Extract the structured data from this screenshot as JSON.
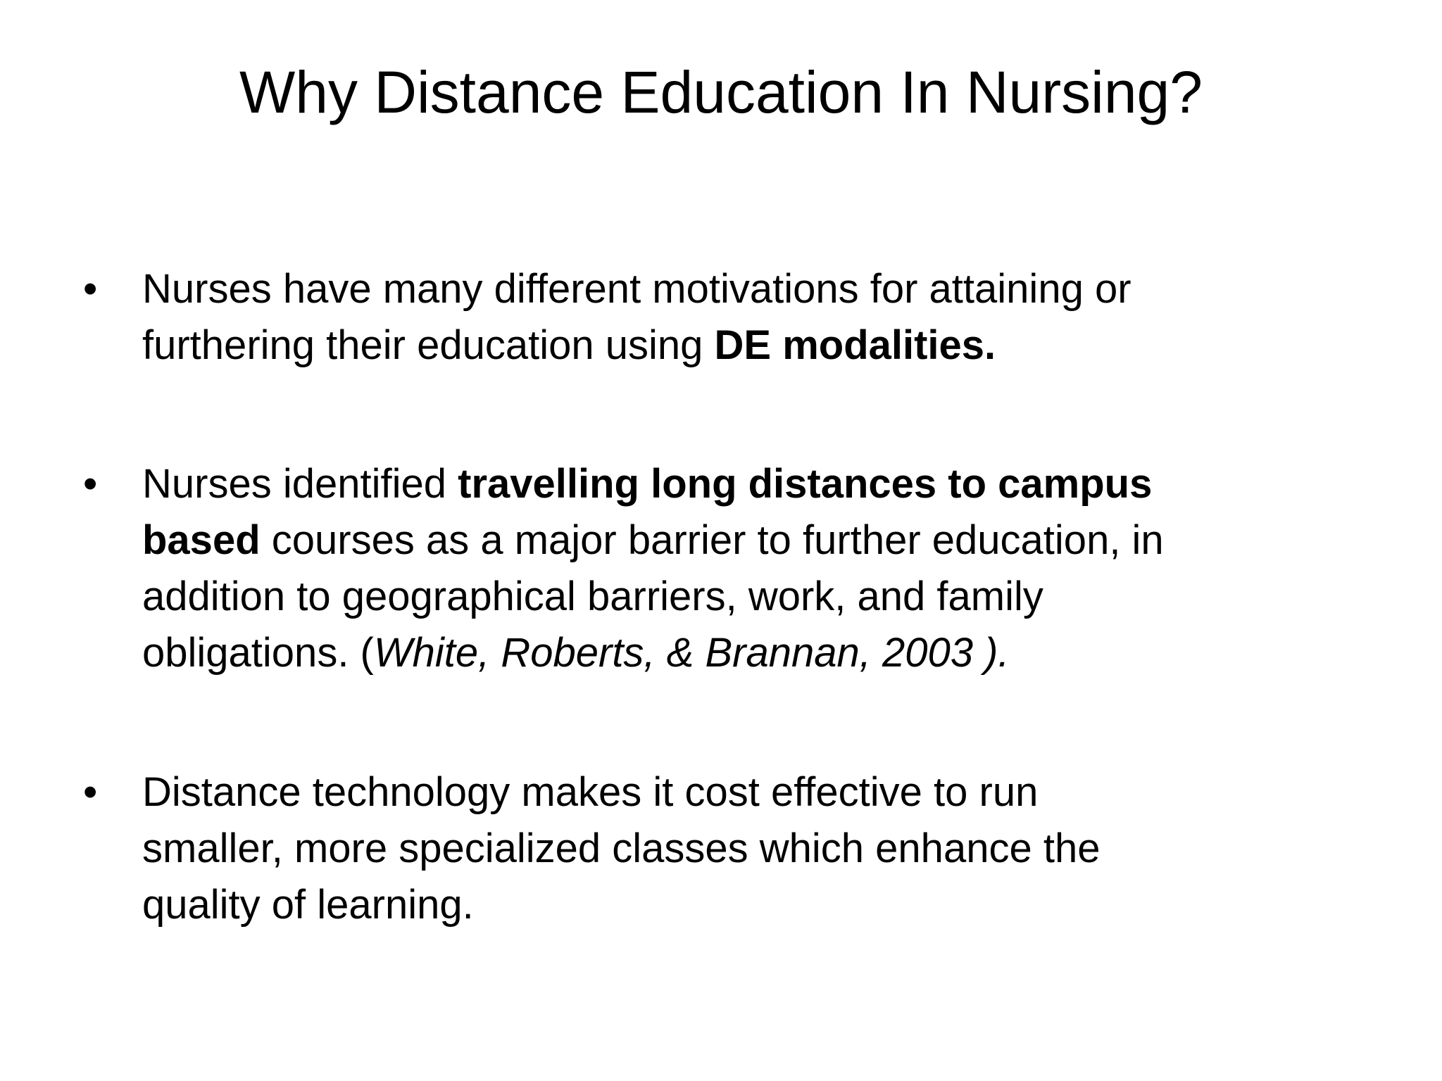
{
  "slide": {
    "title": "Why Distance Education In Nursing?",
    "bullet_glyph": "•",
    "bullets": [
      {
        "lines": [
          [
            {
              "text": "Nurses have many different motivations for attaining or",
              "style": ""
            }
          ],
          [
            {
              "text": "furthering their education using ",
              "style": ""
            },
            {
              "text": "DE modalities.",
              "style": "b"
            }
          ]
        ]
      },
      {
        "lines": [
          [
            {
              "text": "Nurses identified ",
              "style": ""
            },
            {
              "text": "travelling long distances to campus",
              "style": "b"
            }
          ],
          [
            {
              "text": "based",
              "style": "b"
            },
            {
              "text": " courses as a major barrier to further education, in",
              "style": ""
            }
          ],
          [
            {
              "text": "addition to geographical barriers, work, and family",
              "style": ""
            }
          ],
          [
            {
              "text": "obligations. (",
              "style": ""
            },
            {
              "text": "White, Roberts, & Brannan, 2003 ).",
              "style": "i"
            }
          ]
        ]
      },
      {
        "lines": [
          [
            {
              "text": "Distance technology makes it cost effective to run",
              "style": ""
            }
          ],
          [
            {
              "text": "smaller, more specialized classes which enhance the",
              "style": ""
            }
          ],
          [
            {
              "text": "quality of learning.",
              "style": ""
            }
          ]
        ]
      }
    ]
  }
}
